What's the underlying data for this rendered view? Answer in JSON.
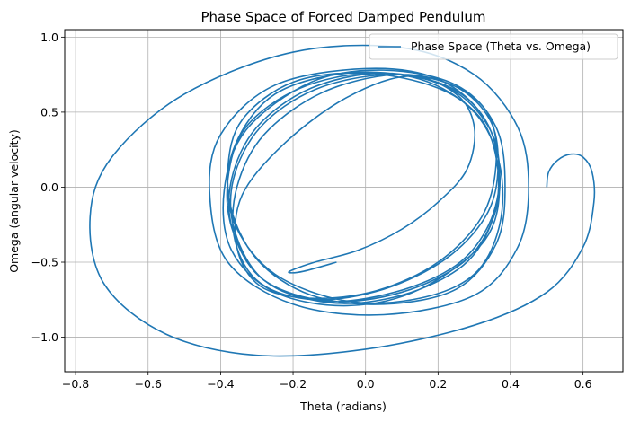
{
  "chart_data": {
    "type": "line",
    "title": "Phase Space of Forced Damped Pendulum",
    "xlabel": "Theta (radians)",
    "ylabel": "Omega (angular velocity)",
    "xlim": [
      -0.83,
      0.71
    ],
    "ylim": [
      -1.23,
      1.05
    ],
    "xticks": [
      -0.8,
      -0.6,
      -0.4,
      -0.2,
      0.0,
      0.2,
      0.4,
      0.6
    ],
    "xtick_labels": [
      "−0.8",
      "−0.6",
      "−0.4",
      "−0.2",
      "0.0",
      "0.2",
      "0.4",
      "0.6"
    ],
    "yticks": [
      -1.0,
      -0.5,
      0.0,
      0.5,
      1.0
    ],
    "ytick_labels": [
      "−1.0",
      "−0.5",
      "0.0",
      "0.5",
      "1.0"
    ],
    "grid": true,
    "legend_position": "top-right",
    "series": [
      {
        "name": "Phase Space (Theta vs. Omega)",
        "color": "#1f77b4",
        "x": [
          0.5,
          0.505,
          0.53,
          0.566,
          0.6,
          0.625,
          0.63,
          0.6,
          0.5,
          0.3,
          0.0,
          -0.3,
          -0.55,
          -0.72,
          -0.76,
          -0.7,
          -0.5,
          -0.2,
          0.1,
          0.3,
          0.42,
          0.45,
          0.42,
          0.3,
          0.05,
          -0.2,
          -0.38,
          -0.43,
          -0.4,
          -0.25,
          0.0,
          0.2,
          0.33,
          0.37,
          0.33,
          0.15,
          -0.05,
          -0.25,
          -0.37,
          -0.39,
          -0.33,
          -0.15,
          0.05,
          0.25,
          0.36,
          0.385,
          0.36,
          0.25,
          0.05,
          -0.15,
          -0.3,
          -0.375,
          -0.36,
          -0.25,
          -0.05,
          0.15,
          0.3,
          0.37,
          0.37,
          0.3,
          0.15,
          -0.05,
          -0.25,
          -0.36,
          -0.38,
          -0.34,
          -0.2,
          0.0,
          0.2,
          0.32,
          0.365,
          0.35,
          0.27,
          0.1,
          -0.1,
          -0.28,
          -0.365,
          -0.38,
          -0.33,
          -0.18,
          0.02,
          0.22,
          0.33,
          0.37,
          0.35,
          0.27,
          0.1,
          -0.1,
          -0.28,
          -0.365,
          -0.37,
          -0.3,
          -0.15,
          0.05,
          0.23,
          0.34,
          0.37,
          0.34,
          0.25,
          0.08,
          -0.12,
          -0.28,
          -0.36,
          -0.365,
          -0.29,
          -0.14,
          0.06,
          0.24,
          0.345,
          0.365,
          0.33,
          0.22,
          0.05,
          -0.14,
          -0.29,
          -0.36,
          -0.355,
          -0.28,
          -0.12,
          0.08,
          0.24,
          0.34,
          0.36,
          0.32,
          0.2,
          0.03,
          -0.15,
          -0.29,
          -0.355,
          -0.34,
          -0.22,
          -0.05,
          0.12,
          0.25,
          0.3,
          0.28,
          0.2,
          0.1,
          -0.02,
          -0.14,
          -0.2,
          -0.21,
          -0.17,
          -0.08
        ],
        "y": [
          0.0,
          0.1,
          0.18,
          0.22,
          0.2,
          0.1,
          -0.1,
          -0.4,
          -0.7,
          -0.92,
          -1.08,
          -1.12,
          -0.98,
          -0.65,
          -0.2,
          0.2,
          0.62,
          0.9,
          0.93,
          0.75,
          0.4,
          0.0,
          -0.4,
          -0.72,
          -0.85,
          -0.78,
          -0.5,
          -0.05,
          0.35,
          0.68,
          0.79,
          0.72,
          0.45,
          0.05,
          -0.35,
          -0.68,
          -0.79,
          -0.7,
          -0.42,
          -0.02,
          0.38,
          0.7,
          0.78,
          0.68,
          0.4,
          0.0,
          -0.38,
          -0.68,
          -0.78,
          -0.72,
          -0.48,
          -0.1,
          0.28,
          0.62,
          0.76,
          0.72,
          0.5,
          0.15,
          -0.25,
          -0.58,
          -0.74,
          -0.76,
          -0.58,
          -0.25,
          0.12,
          0.45,
          0.7,
          0.76,
          0.66,
          0.45,
          0.12,
          -0.22,
          -0.52,
          -0.72,
          -0.77,
          -0.62,
          -0.3,
          0.05,
          0.4,
          0.66,
          0.76,
          0.68,
          0.45,
          0.1,
          -0.22,
          -0.5,
          -0.7,
          -0.76,
          -0.62,
          -0.3,
          0.05,
          0.4,
          0.66,
          0.76,
          0.66,
          0.4,
          0.08,
          -0.25,
          -0.52,
          -0.7,
          -0.76,
          -0.62,
          -0.3,
          0.05,
          0.4,
          0.65,
          0.75,
          0.68,
          0.44,
          0.1,
          -0.2,
          -0.48,
          -0.68,
          -0.75,
          -0.64,
          -0.36,
          0.0,
          0.35,
          0.63,
          0.75,
          0.68,
          0.48,
          0.15,
          -0.2,
          -0.5,
          -0.69,
          -0.74,
          -0.66,
          -0.4,
          -0.05,
          0.3,
          0.6,
          0.74,
          0.62,
          0.4,
          0.12,
          -0.1,
          -0.28,
          -0.42,
          -0.5,
          -0.55,
          -0.57,
          -0.56,
          -0.5
        ]
      }
    ]
  }
}
